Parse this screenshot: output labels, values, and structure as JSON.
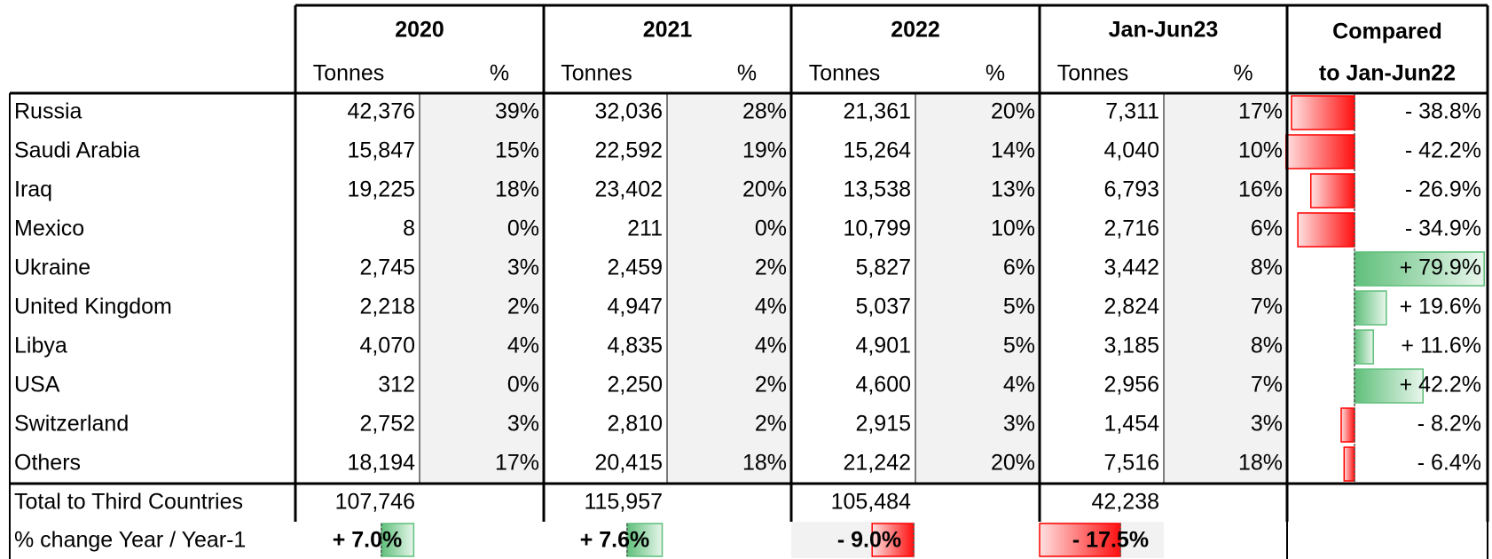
{
  "table": {
    "groups": [
      "2020",
      "2021",
      "2022",
      "Jan-Jun23"
    ],
    "compared": [
      "Compared",
      "to Jan-Jun22"
    ],
    "subheaders": [
      "Tonnes",
      "%"
    ],
    "rows": [
      [
        "Russia",
        "42,376",
        "39%",
        "32,036",
        "28%",
        "21,361",
        "20%",
        "7,311",
        "17%"
      ],
      [
        "Saudi Arabia",
        "15,847",
        "15%",
        "22,592",
        "19%",
        "15,264",
        "14%",
        "4,040",
        "10%"
      ],
      [
        "Iraq",
        "19,225",
        "18%",
        "23,402",
        "20%",
        "13,538",
        "13%",
        "6,793",
        "16%"
      ],
      [
        "Mexico",
        "8",
        "0%",
        "211",
        "0%",
        "10,799",
        "10%",
        "2,716",
        "6%"
      ],
      [
        "Ukraine",
        "2,745",
        "3%",
        "2,459",
        "2%",
        "5,827",
        "6%",
        "3,442",
        "8%"
      ],
      [
        "United Kingdom",
        "2,218",
        "2%",
        "4,947",
        "4%",
        "5,037",
        "5%",
        "2,824",
        "7%"
      ],
      [
        "Libya",
        "4,070",
        "4%",
        "4,835",
        "4%",
        "4,901",
        "5%",
        "3,185",
        "8%"
      ],
      [
        "USA",
        "312",
        "0%",
        "2,250",
        "2%",
        "4,600",
        "4%",
        "2,956",
        "7%"
      ],
      [
        "Switzerland",
        "2,752",
        "3%",
        "2,810",
        "2%",
        "2,915",
        "3%",
        "1,454",
        "3%"
      ],
      [
        "Others",
        "18,194",
        "17%",
        "20,415",
        "18%",
        "21,242",
        "20%",
        "7,516",
        "18%"
      ]
    ],
    "change": {
      "values": [
        -38.8,
        -42.2,
        -26.9,
        -34.9,
        79.9,
        19.6,
        11.6,
        42.2,
        -8.2,
        -6.4
      ],
      "value_labels": [
        "- 38.8%",
        "- 42.2%",
        "- 26.9%",
        "- 34.9%",
        "+ 79.9%",
        "+ 19.6%",
        "+ 11.6%",
        "+ 42.2%",
        "- 8.2%",
        "- 6.4%"
      ]
    },
    "total": {
      "label": "Total to Third Countries",
      "values": [
        "107,746",
        "115,957",
        "105,484",
        "42,238"
      ]
    },
    "yoy": {
      "label": "% change Year / Year-1",
      "values": [
        7.0,
        7.6,
        -9.0,
        -17.5
      ],
      "value_labels": [
        "+ 7.0%",
        "+ 7.6%",
        "- 9.0%",
        "- 17.5%"
      ]
    }
  }
}
